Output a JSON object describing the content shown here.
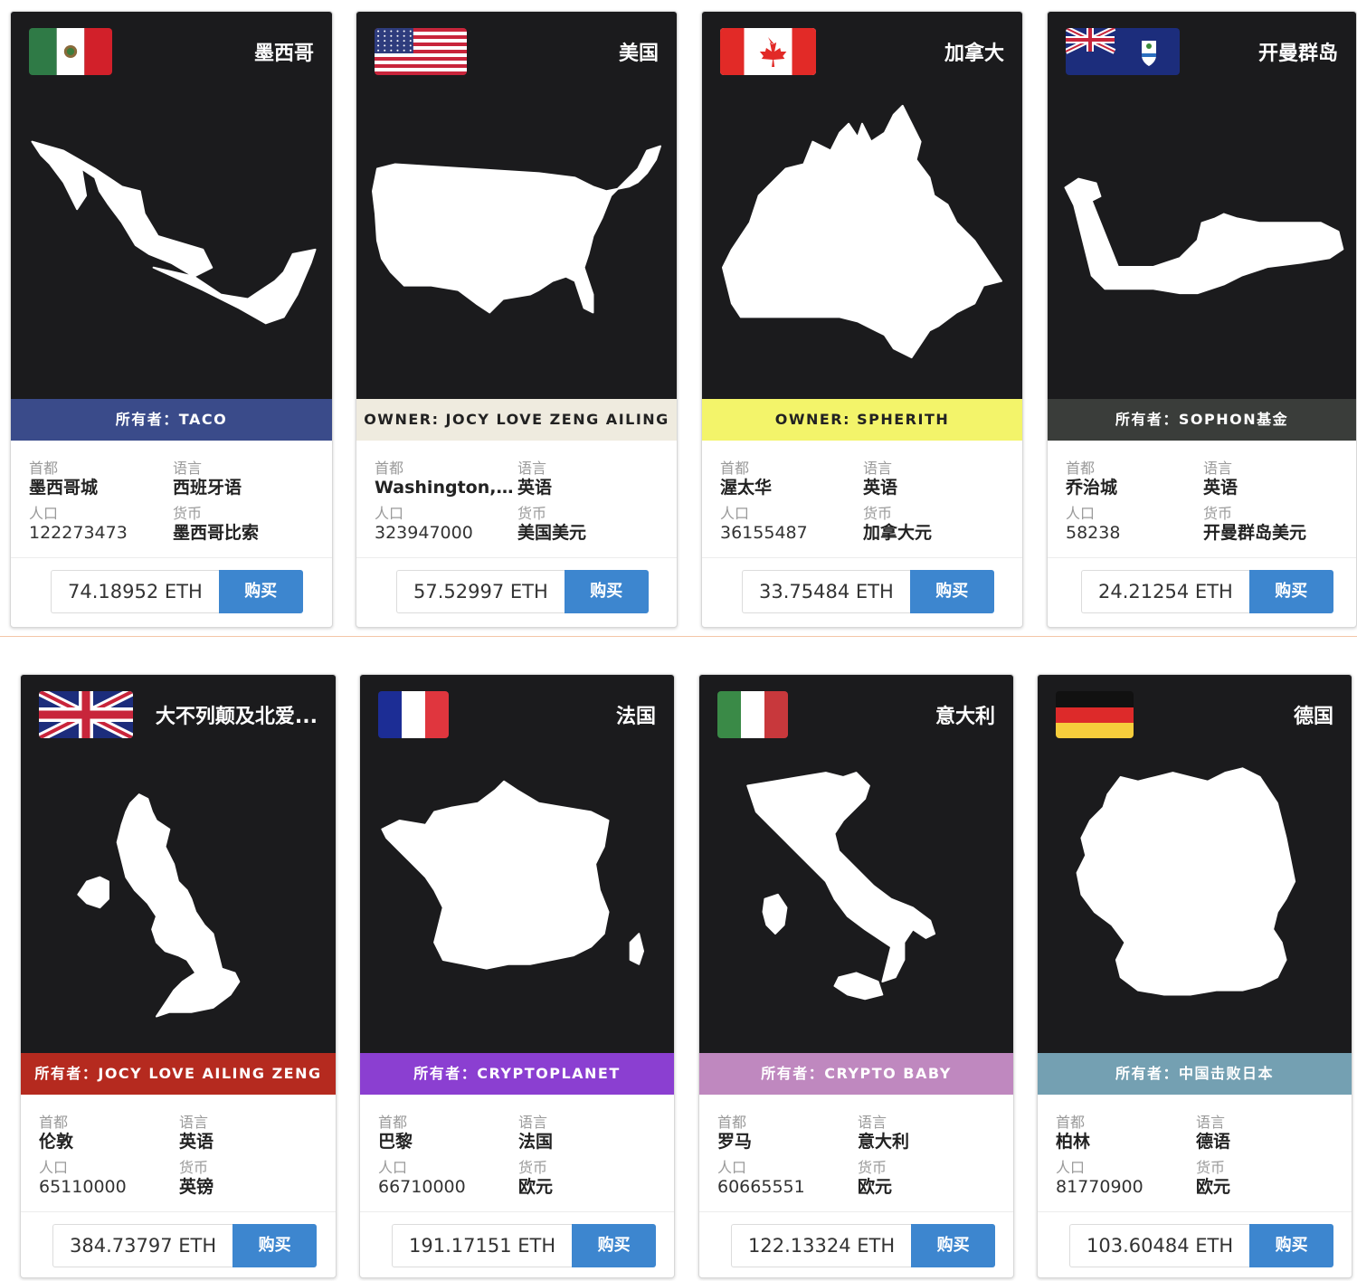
{
  "labels": {
    "capital": "首都",
    "language": "语言",
    "population": "人口",
    "currency": "货币",
    "buy": "购买"
  },
  "cards": [
    {
      "name": "墨西哥",
      "owner": "所有者：TACO",
      "owner_bg": "#3a4b8a",
      "owner_fg": "#ffffff",
      "capital": "墨西哥城",
      "language": "西班牙语",
      "population": "122273473",
      "currency": "墨西哥比索",
      "price": "74.18952 ETH",
      "flag_icon": "mexico-flag-icon",
      "map_icon": "mexico-map-icon"
    },
    {
      "name": "美国",
      "owner": "OWNER: JOCY  LOVE ZENG AILING",
      "owner_bg": "#efebdf",
      "owner_fg": "#222222",
      "capital": "Washington, D....",
      "language": "英语",
      "population": "323947000",
      "currency": "美国美元",
      "price": "57.52997 ETH",
      "flag_icon": "usa-flag-icon",
      "map_icon": "usa-map-icon"
    },
    {
      "name": "加拿大",
      "owner": "OWNER: SPHERITH",
      "owner_bg": "#f3f46a",
      "owner_fg": "#222222",
      "capital": "渥太华",
      "language": "英语",
      "population": "36155487",
      "currency": "加拿大元",
      "price": "33.75484 ETH",
      "flag_icon": "canada-flag-icon",
      "map_icon": "canada-map-icon"
    },
    {
      "name": "开曼群岛",
      "owner": "所有者：SOPHON基金",
      "owner_bg": "#3a3d3a",
      "owner_fg": "#ffffff",
      "capital": "乔治城",
      "language": "英语",
      "population": "58238",
      "currency": "开曼群岛美元",
      "price": "24.21254 ETH",
      "flag_icon": "cayman-flag-icon",
      "map_icon": "cayman-map-icon"
    },
    {
      "name": "大不列颠及北爱...",
      "owner": "所有者：JOCY LOVE AILING ZENG",
      "owner_bg": "#b52a1f",
      "owner_fg": "#ffffff",
      "capital": "伦敦",
      "language": "英语",
      "population": "65110000",
      "currency": "英镑",
      "price": "384.73797 ETH",
      "flag_icon": "uk-flag-icon",
      "map_icon": "uk-map-icon"
    },
    {
      "name": "法国",
      "owner": "所有者：CRYPTOPLANET",
      "owner_bg": "#8b3fd1",
      "owner_fg": "#ffffff",
      "capital": "巴黎",
      "language": "法国",
      "population": "66710000",
      "currency": "欧元",
      "price": "191.17151 ETH",
      "flag_icon": "france-flag-icon",
      "map_icon": "france-map-icon"
    },
    {
      "name": "意大利",
      "owner": "所有者：CRYPTO BABY",
      "owner_bg": "#bf88bf",
      "owner_fg": "#ffffff",
      "capital": "罗马",
      "language": "意大利",
      "population": "60665551",
      "currency": "欧元",
      "price": "122.13324 ETH",
      "flag_icon": "italy-flag-icon",
      "map_icon": "italy-map-icon"
    },
    {
      "name": "德国",
      "owner": "所有者：中国击败日本",
      "owner_bg": "#74a0b2",
      "owner_fg": "#ffffff",
      "capital": "柏林",
      "language": "德语",
      "population": "81770900",
      "currency": "欧元",
      "price": "103.60484 ETH",
      "flag_icon": "germany-flag-icon",
      "map_icon": "germany-map-icon"
    }
  ]
}
